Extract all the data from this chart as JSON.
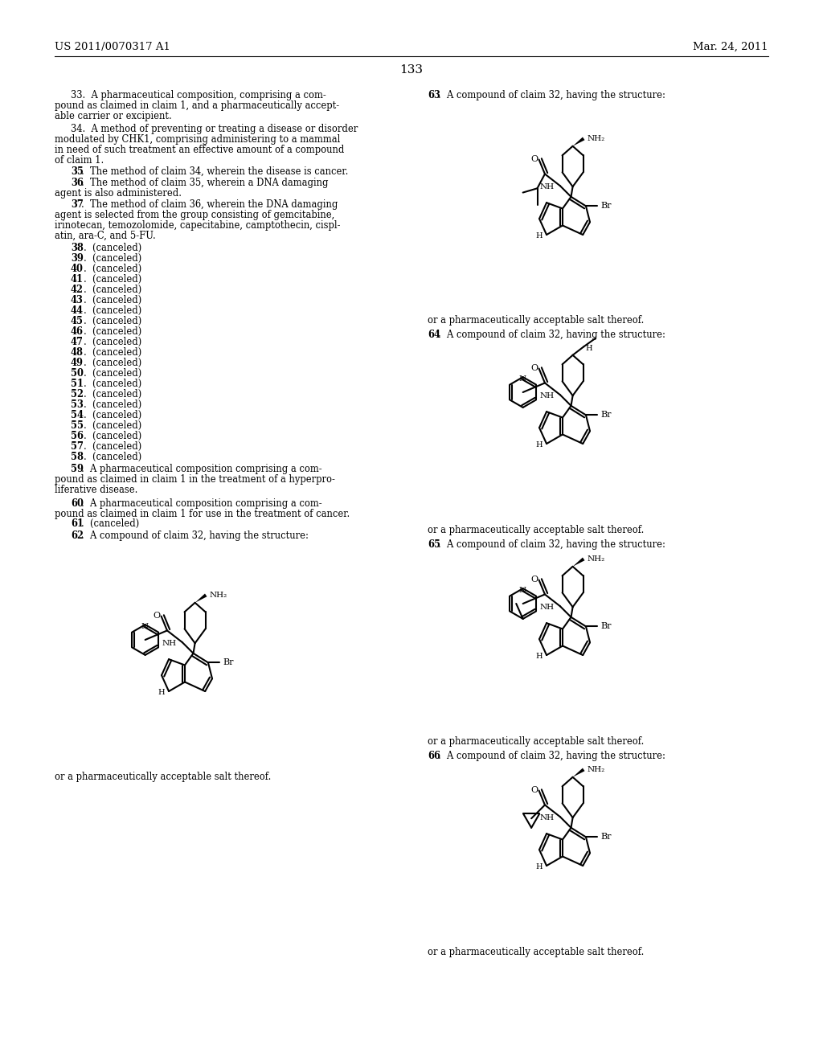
{
  "page_number": "133",
  "header_left": "US 2011/0070317 A1",
  "header_right": "Mar. 24, 2011",
  "background_color": "#ffffff",
  "text_color": "#000000",
  "font_size_body": 8.3,
  "font_size_header": 9.5
}
